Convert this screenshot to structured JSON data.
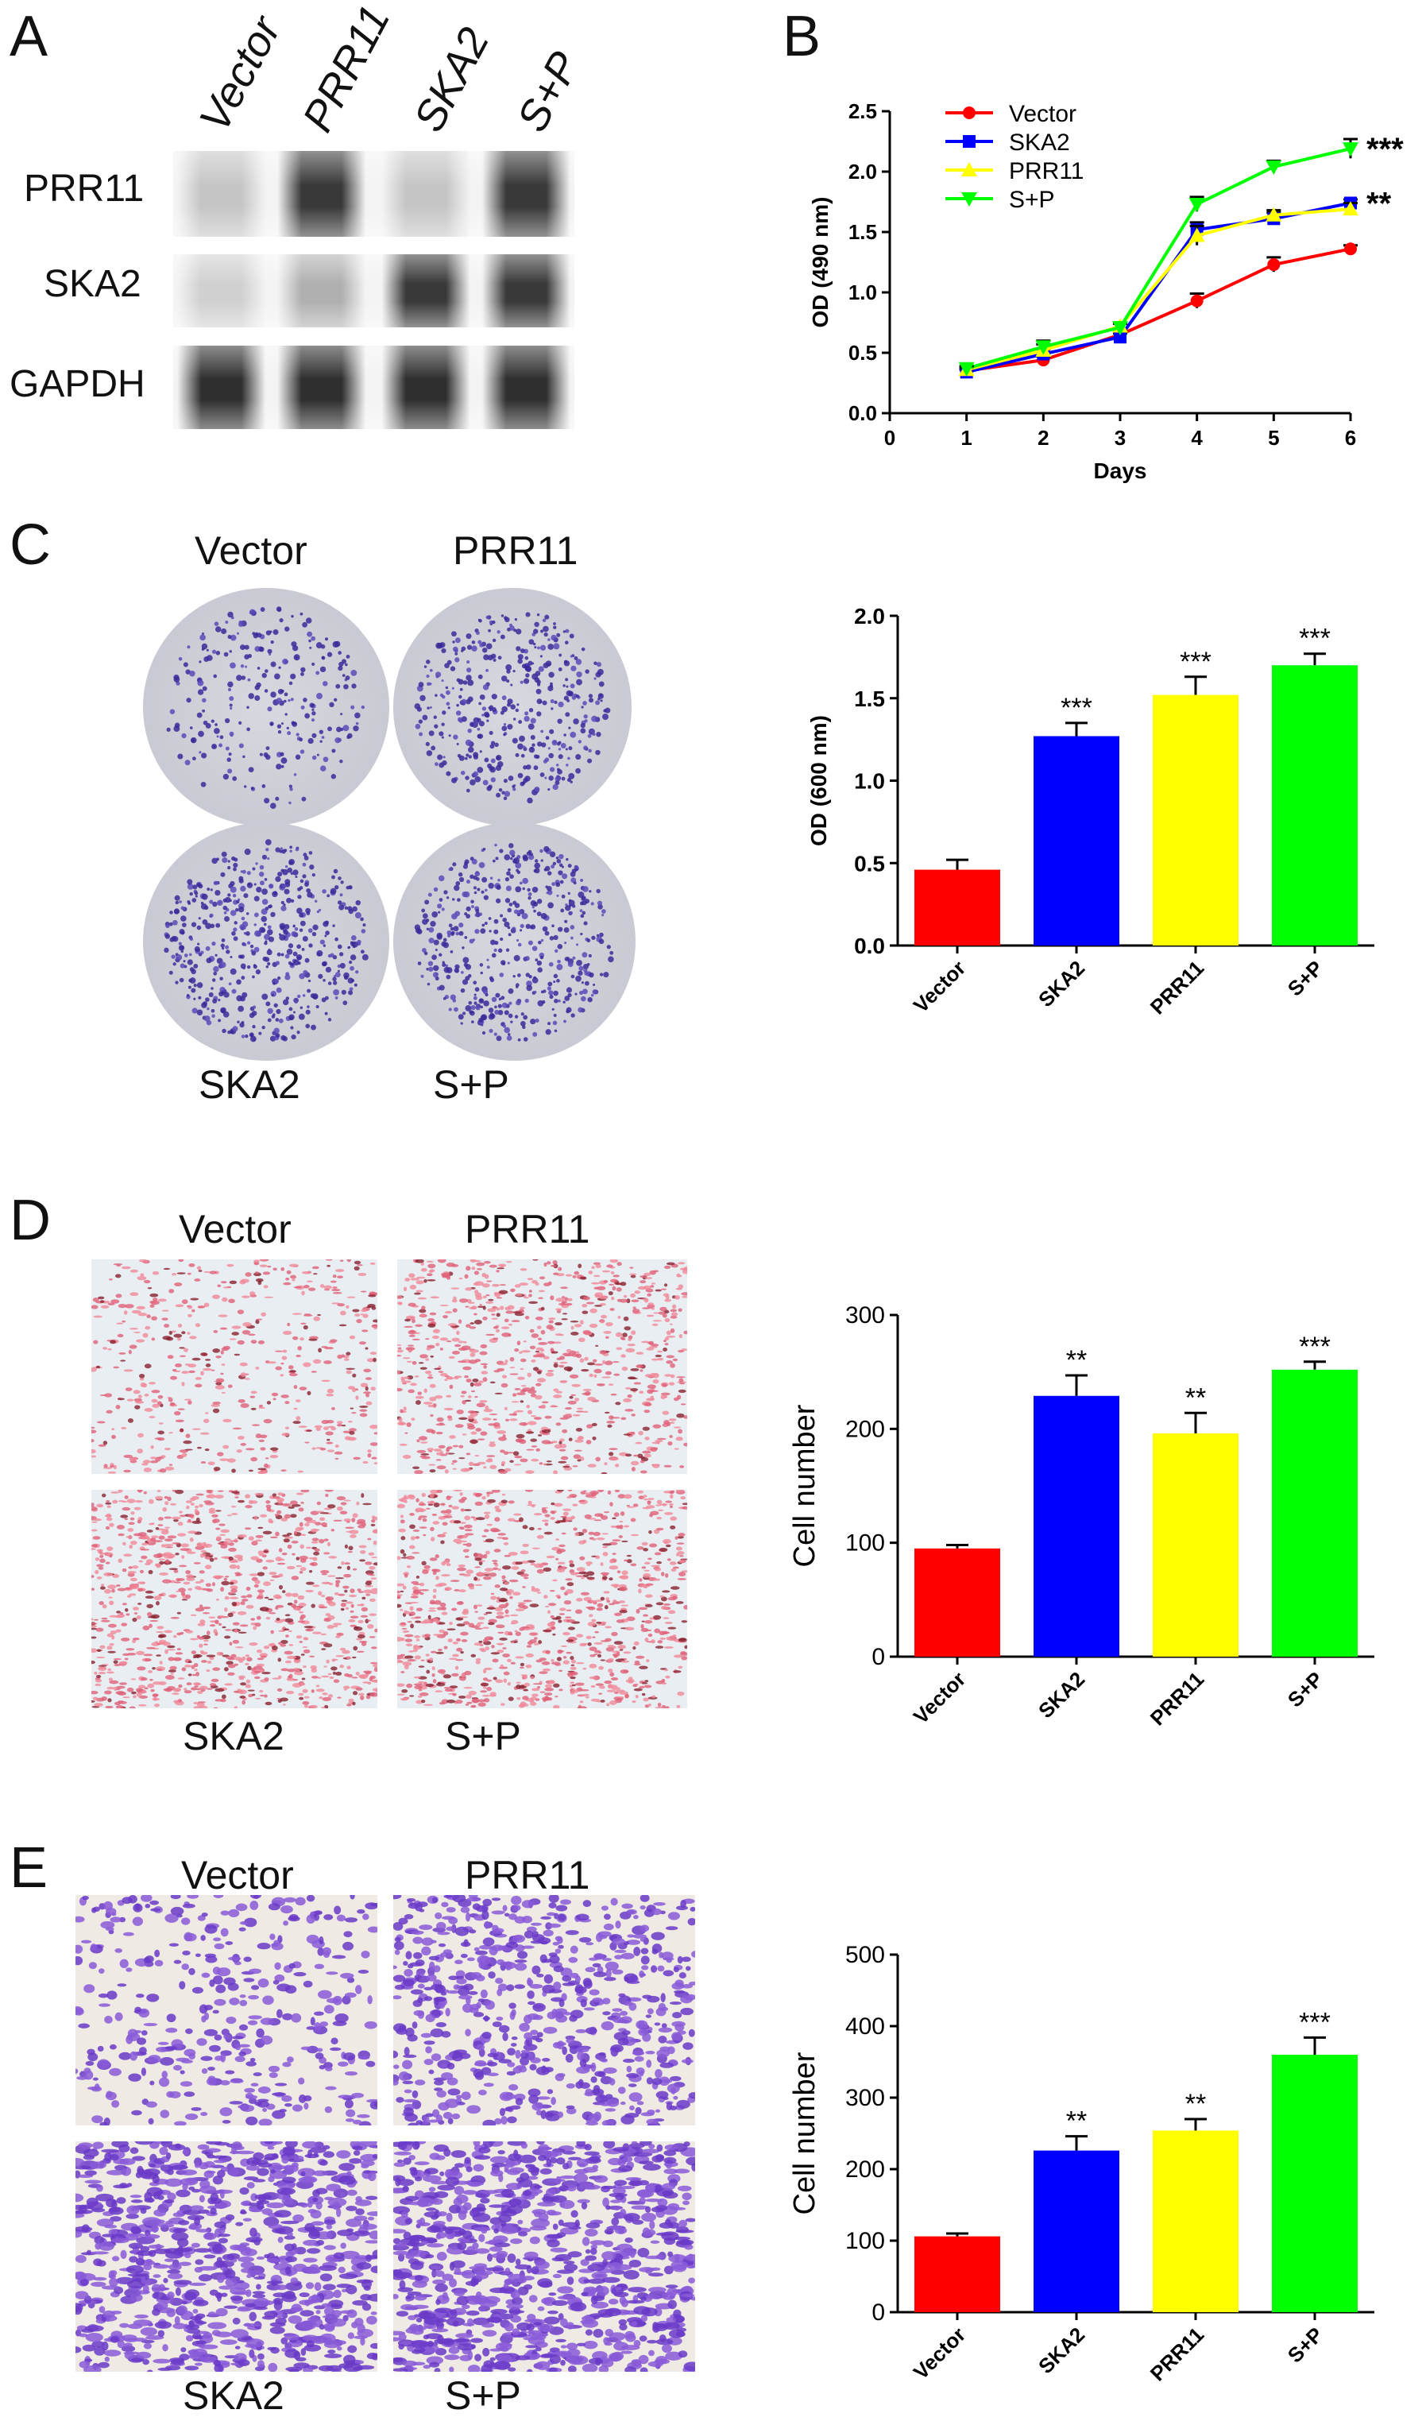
{
  "panels": {
    "A": {
      "letter": "A",
      "lanes": [
        "Vector",
        "PRR11",
        "SKA2",
        "S+P"
      ],
      "rows": [
        {
          "label": "PRR11",
          "intensity": [
            0.2,
            0.85,
            0.2,
            0.85
          ]
        },
        {
          "label": "SKA2",
          "intensity": [
            0.15,
            0.3,
            0.85,
            0.85
          ]
        },
        {
          "label": "GAPDH",
          "intensity": [
            0.9,
            0.9,
            0.9,
            0.9
          ]
        }
      ]
    },
    "B": {
      "letter": "B"
    },
    "C": {
      "letter": "C",
      "dish_labels": [
        "Vector",
        "PRR11",
        "SKA2",
        "S+P"
      ]
    },
    "D": {
      "letter": "D",
      "field_labels": [
        "Vector",
        "PRR11",
        "SKA2",
        "S+P"
      ]
    },
    "E": {
      "letter": "E",
      "field_labels": [
        "Vector",
        "PRR11",
        "SKA2",
        "S+P"
      ]
    }
  },
  "colors": {
    "vector": "#ff0000",
    "ska2": "#0000ff",
    "prr11": "#ffff00",
    "sp": "#00ff00"
  },
  "chart_data": [
    {
      "id": "B",
      "type": "line",
      "x": [
        1,
        2,
        3,
        4,
        5,
        6
      ],
      "xlabel": "Days",
      "ylabel": "OD (490 nm)",
      "xlim": [
        0,
        6
      ],
      "ylim": [
        0,
        2.5
      ],
      "xticks": [
        "0",
        "1",
        "2",
        "3",
        "4",
        "5",
        "6"
      ],
      "yticks": [
        "0.0",
        "0.5",
        "1.0",
        "1.5",
        "2.0",
        "2.5"
      ],
      "legend_position": "top-left",
      "series": [
        {
          "name": "Vector",
          "color": "#ff0000",
          "marker": "circle",
          "values": [
            0.35,
            0.44,
            0.65,
            0.93,
            1.23,
            1.36
          ],
          "err": [
            0.02,
            0.03,
            0.03,
            0.06,
            0.06,
            0.03
          ]
        },
        {
          "name": "SKA2",
          "color": "#0000ff",
          "marker": "square",
          "values": [
            0.34,
            0.49,
            0.63,
            1.52,
            1.61,
            1.74
          ],
          "err": [
            0.02,
            0.04,
            0.03,
            0.06,
            0.05,
            0.03
          ]
        },
        {
          "name": "PRR11",
          "color": "#ffff00",
          "marker": "triangle-up",
          "values": [
            0.36,
            0.52,
            0.72,
            1.47,
            1.64,
            1.69
          ],
          "err": [
            0.02,
            0.05,
            0.03,
            0.08,
            0.04,
            0.05
          ]
        },
        {
          "name": "S+P",
          "color": "#00ff00",
          "marker": "triangle-down",
          "values": [
            0.37,
            0.55,
            0.71,
            1.73,
            2.04,
            2.19
          ],
          "err": [
            0.02,
            0.05,
            0.03,
            0.06,
            0.05,
            0.08
          ]
        }
      ],
      "annotations": [
        {
          "text": "***",
          "series": "S+P"
        },
        {
          "text": "**",
          "series": "SKA2"
        }
      ]
    },
    {
      "id": "C",
      "type": "bar",
      "categories": [
        "Vector",
        "SKA2",
        "PRR11",
        "S+P"
      ],
      "values": [
        0.46,
        1.27,
        1.52,
        1.7
      ],
      "err": [
        0.06,
        0.08,
        0.11,
        0.07
      ],
      "colors": [
        "#ff0000",
        "#0000ff",
        "#ffff00",
        "#00ff00"
      ],
      "sig": [
        "",
        "***",
        "***",
        "***"
      ],
      "ylabel": "OD (600 nm)",
      "ylim": [
        0,
        2.0
      ],
      "yticks": [
        "0.0",
        "0.5",
        "1.0",
        "1.5",
        "2.0"
      ]
    },
    {
      "id": "D",
      "type": "bar",
      "categories": [
        "Vector",
        "SKA2",
        "PRR11",
        "S+P"
      ],
      "values": [
        95,
        229,
        196,
        252
      ],
      "err": [
        3,
        18,
        18,
        7
      ],
      "colors": [
        "#ff0000",
        "#0000ff",
        "#ffff00",
        "#00ff00"
      ],
      "sig": [
        "",
        "**",
        "**",
        "***"
      ],
      "ylabel": "Cell number",
      "ylim": [
        0,
        300
      ],
      "yticks": [
        "0",
        "100",
        "200",
        "300"
      ]
    },
    {
      "id": "E",
      "type": "bar",
      "categories": [
        "Vector",
        "SKA2",
        "PRR11",
        "S+P"
      ],
      "values": [
        106,
        226,
        254,
        360
      ],
      "err": [
        4,
        20,
        16,
        24
      ],
      "colors": [
        "#ff0000",
        "#0000ff",
        "#ffff00",
        "#00ff00"
      ],
      "sig": [
        "",
        "**",
        "**",
        "***"
      ],
      "ylabel": "Cell number",
      "ylim": [
        0,
        500
      ],
      "yticks": [
        "0",
        "100",
        "200",
        "300",
        "400",
        "500"
      ]
    }
  ]
}
